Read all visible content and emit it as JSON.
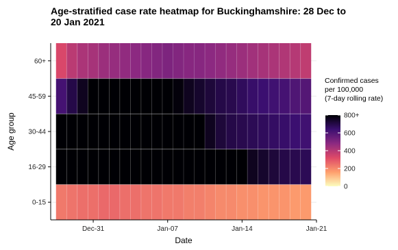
{
  "chart_data": {
    "type": "heatmap",
    "title": [
      "Age-stratified case rate heatmap for Buckinghamshire: 28 Dec to",
      "20 Jan 2021"
    ],
    "xlabel": "Date",
    "ylabel": "Age group",
    "x": [
      "2020-12-28",
      "2020-12-29",
      "2020-12-30",
      "2020-12-31",
      "2021-01-01",
      "2021-01-02",
      "2021-01-03",
      "2021-01-04",
      "2021-01-05",
      "2021-01-06",
      "2021-01-07",
      "2021-01-08",
      "2021-01-09",
      "2021-01-10",
      "2021-01-11",
      "2021-01-12",
      "2021-01-13",
      "2021-01-14",
      "2021-01-15",
      "2021-01-16",
      "2021-01-17",
      "2021-01-18",
      "2021-01-19",
      "2021-01-20"
    ],
    "x_tick_labels": [
      {
        "date": "2020-12-31",
        "label": "Dec-31"
      },
      {
        "date": "2021-01-07",
        "label": "Jan-07"
      },
      {
        "date": "2021-01-14",
        "label": "Jan-14"
      },
      {
        "date": "2021-01-21",
        "label": "Jan-21"
      }
    ],
    "xlim": [
      "2020-12-27",
      "2021-01-21"
    ],
    "y_categories": [
      "0-15",
      "16-29",
      "30-44",
      "45-59",
      "60+"
    ],
    "values": {
      "60+": [
        330,
        390,
        420,
        430,
        450,
        460,
        470,
        480,
        490,
        500,
        510,
        500,
        490,
        490,
        480,
        470,
        460,
        450,
        440,
        430,
        420,
        410,
        400,
        380
      ],
      "45-59": [
        620,
        700,
        760,
        820,
        850,
        880,
        880,
        860,
        840,
        830,
        820,
        790,
        760,
        740,
        720,
        700,
        690,
        670,
        650,
        640,
        630,
        620,
        600,
        590
      ],
      "30-44": [
        850,
        900,
        920,
        940,
        950,
        960,
        970,
        960,
        950,
        940,
        930,
        920,
        900,
        880,
        760,
        720,
        700,
        690,
        680,
        670,
        660,
        650,
        640,
        630
      ],
      "16-29": [
        900,
        950,
        980,
        1000,
        1010,
        1020,
        1010,
        1000,
        990,
        980,
        970,
        960,
        950,
        930,
        920,
        900,
        880,
        860,
        760,
        740,
        720,
        700,
        690,
        680
      ],
      "0-15": [
        230,
        240,
        250,
        250,
        260,
        260,
        250,
        250,
        240,
        240,
        230,
        230,
        220,
        220,
        210,
        200,
        200,
        190,
        190,
        180,
        180,
        180,
        170,
        170
      ]
    },
    "colorbar": {
      "title": [
        "Confirmed cases",
        "per 100,000",
        "(7-day rolling rate)"
      ],
      "ticks": [
        0,
        200,
        400,
        600,
        800
      ],
      "tick_labels": [
        "0",
        "200",
        "400",
        "600",
        "800+"
      ],
      "range": [
        0,
        800
      ],
      "colors": [
        "#fcfdbf",
        "#fe9f6d",
        "#de4968",
        "#8c2981",
        "#3b0f70",
        "#000004"
      ]
    },
    "grid": true,
    "legend_position": "right"
  }
}
